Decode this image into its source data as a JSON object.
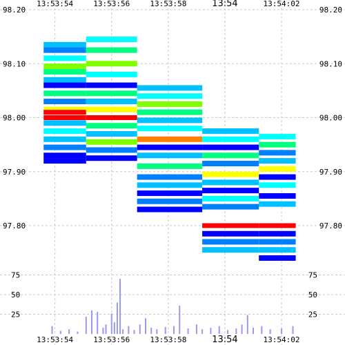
{
  "chart_data": [
    {
      "type": "heatmap",
      "title": "",
      "xlabel": "",
      "ylabel": "",
      "x_ticks": [
        "13:53:54",
        "13:53:56",
        "13:53:58",
        "13:54",
        "13:54:02"
      ],
      "y_ticks": [
        "98.20",
        "98.10",
        "98.00",
        "97.90",
        "97.80"
      ],
      "y_tick_values": [
        98.2,
        98.1,
        98.0,
        97.9,
        97.8
      ],
      "ylim": [
        97.8,
        98.2
      ],
      "color_scale": [
        "#0000ff",
        "#0080ff",
        "#00c0ff",
        "#00ffff",
        "#00ff80",
        "#80ff00",
        "#ffff00",
        "#ff8000",
        "#ff0000"
      ],
      "grid": true,
      "series": [
        {
          "segment": "13:53:53.6-13:53:55.1",
          "x_range": [
            "13:53:53.6",
            "13:53:55.1"
          ],
          "bands": [
            {
              "price": 98.135,
              "color": "#00c0ff"
            },
            {
              "price": 98.125,
              "color": "#0080ff"
            },
            {
              "price": 98.11,
              "color": "#00ffff"
            },
            {
              "price": 98.095,
              "color": "#80ff00"
            },
            {
              "price": 98.085,
              "color": "#00ff80"
            },
            {
              "price": 98.07,
              "color": "#00c0ff"
            },
            {
              "price": 98.06,
              "color": "#0000ff"
            },
            {
              "price": 98.045,
              "color": "#00ff80"
            },
            {
              "price": 98.03,
              "color": "#0080ff"
            },
            {
              "price": 98.015,
              "color": "#ffff00"
            },
            {
              "price": 98.01,
              "color": "#ff0000"
            },
            {
              "price": 98.0,
              "color": "#ff0000"
            },
            {
              "price": 97.99,
              "color": "#00c0ff"
            },
            {
              "price": 97.975,
              "color": "#00ffff"
            },
            {
              "price": 97.96,
              "color": "#00c0ff"
            },
            {
              "price": 97.945,
              "color": "#0080ff"
            },
            {
              "price": 97.93,
              "color": "#0000ff"
            },
            {
              "price": 97.92,
              "color": "#0000ff"
            }
          ]
        },
        {
          "segment": "13:53:55.1-13:53:56.9",
          "x_range": [
            "13:53:55.1",
            "13:53:56.9"
          ],
          "bands": [
            {
              "price": 98.145,
              "color": "#00ffff"
            },
            {
              "price": 98.125,
              "color": "#00ff80"
            },
            {
              "price": 98.1,
              "color": "#80ff00"
            },
            {
              "price": 98.08,
              "color": "#00ffff"
            },
            {
              "price": 98.06,
              "color": "#0000ff"
            },
            {
              "price": 98.045,
              "color": "#00ff80"
            },
            {
              "price": 98.03,
              "color": "#00c0ff"
            },
            {
              "price": 98.015,
              "color": "#ffff00"
            },
            {
              "price": 98.0,
              "color": "#ff0000"
            },
            {
              "price": 97.985,
              "color": "#00ff80"
            },
            {
              "price": 97.97,
              "color": "#00c0ff"
            },
            {
              "price": 97.955,
              "color": "#80ff00"
            },
            {
              "price": 97.94,
              "color": "#0080ff"
            },
            {
              "price": 97.925,
              "color": "#0000ff"
            }
          ]
        },
        {
          "segment": "13:53:56.9-13:53:59.2",
          "x_range": [
            "13:53:56.9",
            "13:53:59.2"
          ],
          "bands": [
            {
              "price": 98.055,
              "color": "#00c0ff"
            },
            {
              "price": 98.04,
              "color": "#00ffff"
            },
            {
              "price": 98.025,
              "color": "#80ff00"
            },
            {
              "price": 98.01,
              "color": "#00ff80"
            },
            {
              "price": 97.995,
              "color": "#00c0ff"
            },
            {
              "price": 97.98,
              "color": "#00ffff"
            },
            {
              "price": 97.96,
              "color": "#ff8000"
            },
            {
              "price": 97.945,
              "color": "#0000ff"
            },
            {
              "price": 97.93,
              "color": "#00c0ff"
            },
            {
              "price": 97.91,
              "color": "#00ff80"
            },
            {
              "price": 97.89,
              "color": "#0080ff"
            },
            {
              "price": 97.875,
              "color": "#00c0ff"
            },
            {
              "price": 97.86,
              "color": "#0000ff"
            },
            {
              "price": 97.845,
              "color": "#0080ff"
            },
            {
              "price": 97.83,
              "color": "#0000ff"
            }
          ]
        },
        {
          "segment": "13:53:59.2-13:54:01.2",
          "x_range": [
            "13:53:59.2",
            "13:54:01.2"
          ],
          "bands": [
            {
              "price": 97.975,
              "color": "#00c0ff"
            },
            {
              "price": 97.96,
              "color": "#00ffff"
            },
            {
              "price": 97.945,
              "color": "#0000ff"
            },
            {
              "price": 97.93,
              "color": "#00ff80"
            },
            {
              "price": 97.915,
              "color": "#0080ff"
            },
            {
              "price": 97.895,
              "color": "#ffff00"
            },
            {
              "price": 97.88,
              "color": "#00c0ff"
            },
            {
              "price": 97.865,
              "color": "#0000ff"
            },
            {
              "price": 97.85,
              "color": "#00ffff"
            },
            {
              "price": 97.835,
              "color": "#0080ff"
            },
            {
              "price": 97.8,
              "color": "#ff0000"
            },
            {
              "price": 97.785,
              "color": "#0000ff"
            },
            {
              "price": 97.77,
              "color": "#0080ff"
            },
            {
              "price": 97.755,
              "color": "#00c0ff"
            }
          ]
        },
        {
          "segment": "13:54:01.2-13:54:02.5",
          "x_range": [
            "13:54:01.2",
            "13:54:02.5"
          ],
          "bands": [
            {
              "price": 97.965,
              "color": "#00ffff"
            },
            {
              "price": 97.95,
              "color": "#00ff80"
            },
            {
              "price": 97.935,
              "color": "#0080ff"
            },
            {
              "price": 97.92,
              "color": "#00c0ff"
            },
            {
              "price": 97.905,
              "color": "#ffff00"
            },
            {
              "price": 97.89,
              "color": "#0000ff"
            },
            {
              "price": 97.875,
              "color": "#00ffff"
            },
            {
              "price": 97.855,
              "color": "#0000ff"
            },
            {
              "price": 97.84,
              "color": "#00c0ff"
            },
            {
              "price": 97.8,
              "color": "#ff0000"
            },
            {
              "price": 97.785,
              "color": "#0000ff"
            },
            {
              "price": 97.77,
              "color": "#0080ff"
            },
            {
              "price": 97.755,
              "color": "#00c0ff"
            },
            {
              "price": 97.74,
              "color": "#0000ff"
            }
          ]
        }
      ]
    },
    {
      "type": "bar",
      "title": "",
      "xlabel": "",
      "ylabel": "",
      "x_ticks": [
        "13:53:54",
        "13:53:56",
        "13:53:58",
        "13:54",
        "13:54:02"
      ],
      "y_ticks": [
        "75",
        "50",
        "25"
      ],
      "y_tick_values": [
        75,
        50,
        25
      ],
      "ylim": [
        0,
        100
      ],
      "color": "#9999ee",
      "grid": true,
      "x": [
        "13:53:53.9",
        "13:53:54.2",
        "13:53:54.5",
        "13:53:54.8",
        "13:53:55.1",
        "13:53:55.3",
        "13:53:55.5",
        "13:53:55.7",
        "13:53:55.8",
        "13:53:56.0",
        "13:53:56.1",
        "13:53:56.2",
        "13:53:56.3",
        "13:53:56.4",
        "13:53:56.6",
        "13:53:56.8",
        "13:53:57.0",
        "13:53:57.2",
        "13:53:57.4",
        "13:53:57.6",
        "13:53:57.9",
        "13:53:58.2",
        "13:53:58.4",
        "13:53:58.7",
        "13:53:59.0",
        "13:53:59.2",
        "13:53:59.5",
        "13:53:59.8",
        "13:54:00.1",
        "13:54:00.4",
        "13:54:00.6",
        "13:54:00.8",
        "13:54:01.0",
        "13:54:01.3",
        "13:54:01.6",
        "13:54:02.0",
        "13:54:02.4"
      ],
      "values": [
        10,
        4,
        6,
        3,
        22,
        30,
        28,
        8,
        12,
        26,
        15,
        40,
        70,
        6,
        10,
        5,
        12,
        20,
        8,
        6,
        9,
        10,
        36,
        7,
        12,
        6,
        8,
        10,
        5,
        7,
        12,
        24,
        8,
        10,
        6,
        7,
        10
      ]
    }
  ]
}
